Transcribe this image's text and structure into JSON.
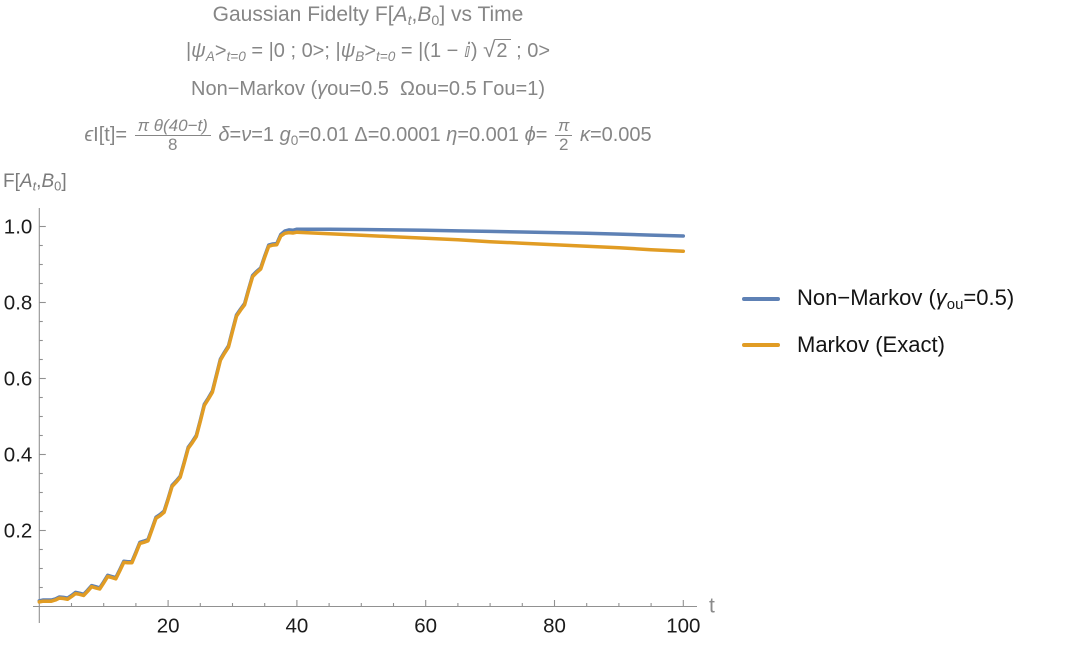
{
  "colors": {
    "non_markov": "#5E81B5",
    "markov": "#E19C24",
    "axis": "#919191",
    "tick_label": "#1c1c1c",
    "title_gray": "#868686"
  },
  "titles": {
    "line1": [
      {
        "text": "Gaussian Fidelty F["
      },
      {
        "text": "A",
        "style": "italic"
      },
      {
        "text": "t",
        "style": "sub-italic"
      },
      {
        "text": ","
      },
      {
        "text": "B",
        "style": "italic"
      },
      {
        "text": "0",
        "style": "sub"
      },
      {
        "text": "] vs Time"
      }
    ],
    "line2": [
      {
        "text": "|"
      },
      {
        "text": "ψ",
        "style": "italic"
      },
      {
        "text": "A",
        "style": "sub-italic"
      },
      {
        "text": ">"
      },
      {
        "text": "t=0",
        "style": "sub-italic"
      },
      {
        "text": " = |0 ; 0>; |"
      },
      {
        "text": "ψ",
        "style": "italic"
      },
      {
        "text": "B",
        "style": "sub-italic"
      },
      {
        "text": ">"
      },
      {
        "text": "t=0",
        "style": "sub-italic"
      },
      {
        "text": " = |(1 − ⅈ) "
      },
      {
        "sqrt": "2"
      },
      {
        "text": " ; 0>"
      }
    ],
    "line3": [
      {
        "text": "Non−Markov ("
      },
      {
        "text": "γ",
        "style": "italic"
      },
      {
        "text": "ou=0.5  Ωou=0.5 Γou=1)"
      }
    ],
    "line4": [
      {
        "text": "ϵ",
        "style": "italic"
      },
      {
        "text": "I[t]= "
      },
      {
        "frac": {
          "num": "π θ(40−t)",
          "den": "8"
        }
      },
      {
        "text": " "
      },
      {
        "text": "δ",
        "style": "italic"
      },
      {
        "text": "="
      },
      {
        "text": "ν",
        "style": "italic"
      },
      {
        "text": "=1 "
      },
      {
        "text": "g",
        "style": "italic"
      },
      {
        "text": "0",
        "style": "sub"
      },
      {
        "text": "=0.01 Δ=0.0001 "
      },
      {
        "text": "η",
        "style": "italic"
      },
      {
        "text": "=0.001 "
      },
      {
        "text": "ϕ",
        "style": "italic"
      },
      {
        "text": "= "
      },
      {
        "frac": {
          "num": "π",
          "den": "2"
        }
      },
      {
        "text": " "
      },
      {
        "text": "κ",
        "style": "italic"
      },
      {
        "text": "=0.005"
      }
    ],
    "y_axis_label": [
      {
        "text": "F["
      },
      {
        "text": "A",
        "style": "italic"
      },
      {
        "text": "t",
        "style": "sub-italic"
      },
      {
        "text": ","
      },
      {
        "text": "B",
        "style": "italic"
      },
      {
        "text": "0",
        "style": "sub"
      },
      {
        "text": "]"
      }
    ]
  },
  "legend": {
    "entries": [
      {
        "color": "#5E81B5",
        "segments": [
          {
            "text": "Non−Markov ("
          },
          {
            "text": "γ",
            "style": "italic"
          },
          {
            "text": "ou",
            "style": "sub"
          },
          {
            "text": "=0.5)"
          }
        ]
      },
      {
        "color": "#E19C24",
        "segments": [
          {
            "text": "Markov (Exact)"
          }
        ]
      }
    ]
  },
  "chart_data": {
    "type": "line",
    "title": "Gaussian Fidelty F[A_t,B_0] vs Time",
    "xlabel": "t",
    "ylabel": "F[A_t,B_0]",
    "xlim": [
      0,
      103
    ],
    "ylim": [
      0,
      1.05
    ],
    "grid": false,
    "legend_position": "right",
    "x_ticks_major": [
      {
        "v": 20,
        "label": "20"
      },
      {
        "v": 40,
        "label": "40"
      },
      {
        "v": 60,
        "label": "60"
      },
      {
        "v": 80,
        "label": "80"
      },
      {
        "v": 100,
        "label": "100"
      }
    ],
    "x_ticks_minor": [
      5,
      10,
      15,
      25,
      30,
      35,
      45,
      50,
      55,
      65,
      70,
      75,
      85,
      90,
      95
    ],
    "y_ticks_major": [
      {
        "v": 0.2,
        "label": "0.2"
      },
      {
        "v": 0.4,
        "label": "0.4"
      },
      {
        "v": 0.6,
        "label": "0.6"
      },
      {
        "v": 0.8,
        "label": "0.8"
      },
      {
        "v": 1.0,
        "label": "1.0"
      }
    ],
    "y_ticks_minor": [
      0.05,
      0.1,
      0.15,
      0.25,
      0.3,
      0.35,
      0.45,
      0.5,
      0.55,
      0.65,
      0.7,
      0.75,
      0.85,
      0.9,
      0.95
    ],
    "series": [
      {
        "name": "Non-Markov (γou=0.5)",
        "color": "#5E81B5",
        "points": [
          [
            0,
            0.015
          ],
          [
            0.625,
            0.017
          ],
          [
            1.25,
            0.017
          ],
          [
            1.875,
            0.017
          ],
          [
            2.5,
            0.02
          ],
          [
            3.125,
            0.025
          ],
          [
            3.75,
            0.024
          ],
          [
            4.375,
            0.022
          ],
          [
            5,
            0.029
          ],
          [
            5.625,
            0.037
          ],
          [
            6.25,
            0.035
          ],
          [
            6.875,
            0.032
          ],
          [
            7.5,
            0.043
          ],
          [
            8.125,
            0.055
          ],
          [
            8.75,
            0.052
          ],
          [
            9.375,
            0.049
          ],
          [
            10,
            0.065
          ],
          [
            10.625,
            0.082
          ],
          [
            11.25,
            0.079
          ],
          [
            11.875,
            0.076
          ],
          [
            12.5,
            0.097
          ],
          [
            13.125,
            0.119
          ],
          [
            13.75,
            0.118
          ],
          [
            14.375,
            0.118
          ],
          [
            15,
            0.143
          ],
          [
            15.625,
            0.169
          ],
          [
            16.25,
            0.172
          ],
          [
            16.875,
            0.176
          ],
          [
            17.5,
            0.205
          ],
          [
            18.125,
            0.235
          ],
          [
            18.75,
            0.242
          ],
          [
            19.375,
            0.251
          ],
          [
            20,
            0.284
          ],
          [
            20.625,
            0.319
          ],
          [
            21.25,
            0.33
          ],
          [
            21.875,
            0.343
          ],
          [
            22.5,
            0.38
          ],
          [
            23.125,
            0.419
          ],
          [
            23.75,
            0.434
          ],
          [
            24.375,
            0.45
          ],
          [
            25,
            0.49
          ],
          [
            25.625,
            0.532
          ],
          [
            26.25,
            0.549
          ],
          [
            26.875,
            0.567
          ],
          [
            27.5,
            0.609
          ],
          [
            28.125,
            0.651
          ],
          [
            28.75,
            0.669
          ],
          [
            29.375,
            0.686
          ],
          [
            30,
            0.727
          ],
          [
            30.625,
            0.767
          ],
          [
            31.25,
            0.783
          ],
          [
            31.875,
            0.797
          ],
          [
            32.5,
            0.835
          ],
          [
            33.125,
            0.871
          ],
          [
            33.75,
            0.882
          ],
          [
            34.375,
            0.891
          ],
          [
            35,
            0.922
          ],
          [
            35.625,
            0.951
          ],
          [
            36.25,
            0.954
          ],
          [
            36.875,
            0.955
          ],
          [
            37.5,
            0.979
          ],
          [
            38.125,
            0.988
          ],
          [
            38.75,
            0.991
          ],
          [
            39.375,
            0.99
          ],
          [
            40,
            0.993
          ],
          [
            45,
            0.9925
          ],
          [
            50,
            0.992
          ],
          [
            55,
            0.991
          ],
          [
            60,
            0.99
          ],
          [
            65,
            0.9885
          ],
          [
            70,
            0.987
          ],
          [
            75,
            0.9855
          ],
          [
            80,
            0.984
          ],
          [
            85,
            0.982
          ],
          [
            90,
            0.98
          ],
          [
            95,
            0.9775
          ],
          [
            100,
            0.975
          ]
        ]
      },
      {
        "name": "Markov (Exact)",
        "color": "#E19C24",
        "points": [
          [
            0,
            0.012
          ],
          [
            0.625,
            0.014
          ],
          [
            1.25,
            0.014
          ],
          [
            1.875,
            0.014
          ],
          [
            2.5,
            0.017
          ],
          [
            3.125,
            0.022
          ],
          [
            3.75,
            0.021
          ],
          [
            4.375,
            0.019
          ],
          [
            5,
            0.026
          ],
          [
            5.625,
            0.034
          ],
          [
            6.25,
            0.032
          ],
          [
            6.875,
            0.029
          ],
          [
            7.5,
            0.04
          ],
          [
            8.125,
            0.052
          ],
          [
            8.75,
            0.049
          ],
          [
            9.375,
            0.046
          ],
          [
            10,
            0.062
          ],
          [
            10.625,
            0.079
          ],
          [
            11.25,
            0.076
          ],
          [
            11.875,
            0.073
          ],
          [
            12.5,
            0.094
          ],
          [
            13.125,
            0.116
          ],
          [
            13.75,
            0.115
          ],
          [
            14.375,
            0.115
          ],
          [
            15,
            0.14
          ],
          [
            15.625,
            0.166
          ],
          [
            16.25,
            0.169
          ],
          [
            16.875,
            0.173
          ],
          [
            17.5,
            0.202
          ],
          [
            18.125,
            0.232
          ],
          [
            18.75,
            0.239
          ],
          [
            19.375,
            0.248
          ],
          [
            20,
            0.281
          ],
          [
            20.625,
            0.316
          ],
          [
            21.25,
            0.327
          ],
          [
            21.875,
            0.34
          ],
          [
            22.5,
            0.377
          ],
          [
            23.125,
            0.416
          ],
          [
            23.75,
            0.431
          ],
          [
            24.375,
            0.447
          ],
          [
            25,
            0.487
          ],
          [
            25.625,
            0.529
          ],
          [
            26.25,
            0.546
          ],
          [
            26.875,
            0.564
          ],
          [
            27.5,
            0.606
          ],
          [
            28.125,
            0.648
          ],
          [
            28.75,
            0.666
          ],
          [
            29.375,
            0.683
          ],
          [
            30,
            0.724
          ],
          [
            30.625,
            0.764
          ],
          [
            31.25,
            0.78
          ],
          [
            31.875,
            0.794
          ],
          [
            32.5,
            0.832
          ],
          [
            33.125,
            0.868
          ],
          [
            33.75,
            0.879
          ],
          [
            34.375,
            0.888
          ],
          [
            35,
            0.919
          ],
          [
            35.625,
            0.948
          ],
          [
            36.25,
            0.951
          ],
          [
            36.875,
            0.952
          ],
          [
            37.5,
            0.975
          ],
          [
            38.125,
            0.982
          ],
          [
            38.75,
            0.984
          ],
          [
            39.375,
            0.983
          ],
          [
            40,
            0.985
          ],
          [
            45,
            0.981
          ],
          [
            50,
            0.977
          ],
          [
            55,
            0.973
          ],
          [
            60,
            0.969
          ],
          [
            65,
            0.965
          ],
          [
            70,
            0.96
          ],
          [
            75,
            0.956
          ],
          [
            80,
            0.952
          ],
          [
            85,
            0.948
          ],
          [
            90,
            0.944
          ],
          [
            95,
            0.939
          ],
          [
            100,
            0.935
          ]
        ]
      }
    ]
  }
}
